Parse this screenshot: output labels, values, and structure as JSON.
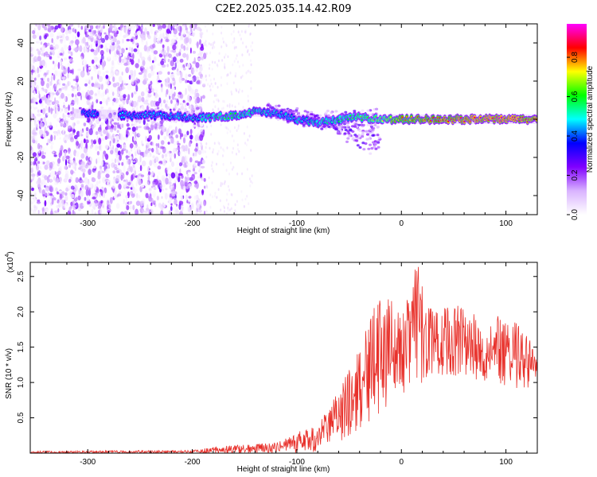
{
  "title": "C2E2.2025.035.14.42.R09",
  "chart_data": [
    {
      "type": "heatmap",
      "xlabel": "Height of straight line (km)",
      "ylabel": "Frequency (Hz)",
      "xlim": [
        -355,
        130
      ],
      "ylim": [
        -50,
        50
      ],
      "xticks": [
        -300,
        -200,
        -100,
        0,
        100
      ],
      "yticks": [
        -40,
        -20,
        0,
        20,
        40
      ],
      "colorbar": {
        "label": "Normalized spectral amplitude",
        "range": [
          0,
          0.97
        ],
        "ticks": [
          "0.0",
          "0.2",
          "0.4",
          "0.6",
          "0.8"
        ],
        "tick_values": [
          0.0,
          0.2,
          0.4,
          0.6,
          0.8
        ],
        "colors": [
          "#ffffff",
          "#d9b3ff",
          "#8000ff",
          "#0000ff",
          "#00ffff",
          "#00ff00",
          "#ffff00",
          "#ff0000",
          "#ff00ff"
        ]
      },
      "noise_region": {
        "x_range": [
          -355,
          -188
        ],
        "description_level": "high"
      },
      "ridge": [
        {
          "x": -300,
          "f": 3
        },
        {
          "x": -260,
          "f": 2
        },
        {
          "x": -230,
          "f": 2
        },
        {
          "x": -200,
          "f": 1
        },
        {
          "x": -180,
          "f": 1
        },
        {
          "x": -160,
          "f": 2
        },
        {
          "x": -140,
          "f": 4
        },
        {
          "x": -120,
          "f": 3
        },
        {
          "x": -100,
          "f": 0
        },
        {
          "x": -80,
          "f": -2
        },
        {
          "x": -60,
          "f": 0
        },
        {
          "x": -40,
          "f": 1
        },
        {
          "x": -20,
          "f": 0
        },
        {
          "x": 0,
          "f": 0
        },
        {
          "x": 50,
          "f": 0
        },
        {
          "x": 100,
          "f": 0
        },
        {
          "x": 130,
          "f": 0
        }
      ],
      "ridge_amplitude": [
        {
          "x": -300,
          "a": 0.45
        },
        {
          "x": -200,
          "a": 0.5
        },
        {
          "x": -170,
          "a": 0.6
        },
        {
          "x": -140,
          "a": 0.55
        },
        {
          "x": -110,
          "a": 0.5
        },
        {
          "x": -80,
          "a": 0.55
        },
        {
          "x": -50,
          "a": 0.6
        },
        {
          "x": -20,
          "a": 0.7
        },
        {
          "x": 0,
          "a": 0.8
        },
        {
          "x": 50,
          "a": 0.92
        },
        {
          "x": 100,
          "a": 0.95
        },
        {
          "x": 130,
          "a": 0.9
        }
      ]
    },
    {
      "type": "line",
      "xlabel": "Height of straight line (km)",
      "ylabel": "SNR (10 * v/v)",
      "y_multiplier": "(x10",
      "y_multiplier_exp": "4",
      "xlim": [
        -355,
        130
      ],
      "ylim": [
        0,
        27000
      ],
      "xticks": [
        -300,
        -200,
        -100,
        0,
        100
      ],
      "yticks": [
        5000,
        10000,
        15000,
        20000,
        25000
      ],
      "ytick_labels": [
        "0.5",
        "1.0",
        "1.5",
        "2.0",
        "2.5"
      ],
      "series": [
        {
          "color": "#e8302a",
          "envelope": [
            {
              "x": -355,
              "lo": 0,
              "hi": 300
            },
            {
              "x": -200,
              "lo": 0,
              "hi": 400
            },
            {
              "x": -180,
              "lo": 0,
              "hi": 900
            },
            {
              "x": -150,
              "lo": 0,
              "hi": 1200
            },
            {
              "x": -120,
              "lo": 0,
              "hi": 1500
            },
            {
              "x": -100,
              "lo": 0,
              "hi": 3000
            },
            {
              "x": -80,
              "lo": 200,
              "hi": 4000
            },
            {
              "x": -60,
              "lo": 1500,
              "hi": 9000
            },
            {
              "x": -40,
              "lo": 3500,
              "hi": 15000
            },
            {
              "x": -25,
              "lo": 5000,
              "hi": 21000
            },
            {
              "x": -10,
              "lo": 7000,
              "hi": 23000
            },
            {
              "x": 0,
              "lo": 7000,
              "hi": 19000
            },
            {
              "x": 15,
              "lo": 9000,
              "hi": 27000
            },
            {
              "x": 30,
              "lo": 11000,
              "hi": 20000
            },
            {
              "x": 50,
              "lo": 11000,
              "hi": 21500
            },
            {
              "x": 70,
              "lo": 10500,
              "hi": 21000
            },
            {
              "x": 90,
              "lo": 9500,
              "hi": 19500
            },
            {
              "x": 110,
              "lo": 9000,
              "hi": 18500
            },
            {
              "x": 130,
              "lo": 9500,
              "hi": 15000
            }
          ]
        }
      ]
    }
  ]
}
